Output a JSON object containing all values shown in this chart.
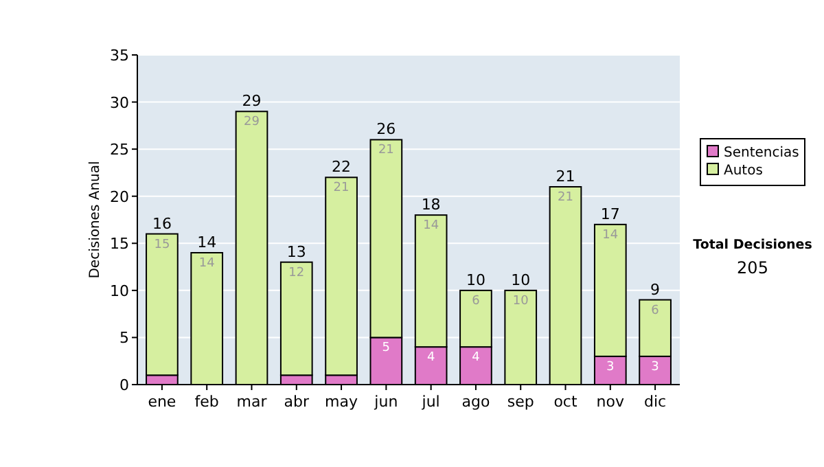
{
  "chart_data": {
    "type": "bar",
    "stacked": true,
    "ylabel": "Decisiones Anual",
    "categories": [
      "ene",
      "feb",
      "mar",
      "abr",
      "may",
      "jun",
      "jul",
      "ago",
      "sep",
      "oct",
      "nov",
      "dic"
    ],
    "series": [
      {
        "name": "Sentencias",
        "color": "#e07ac8",
        "values": [
          1,
          0,
          0,
          1,
          1,
          5,
          4,
          4,
          0,
          0,
          3,
          3
        ],
        "value_labels": [
          null,
          null,
          null,
          null,
          null,
          "5",
          "4",
          "4",
          null,
          null,
          "3",
          "3"
        ]
      },
      {
        "name": "Autos",
        "color": "#d6efa0",
        "values": [
          15,
          14,
          29,
          12,
          21,
          21,
          14,
          6,
          10,
          21,
          14,
          6
        ],
        "value_labels": [
          "15",
          "14",
          "29",
          "12",
          "21",
          "21",
          "14",
          "6",
          "10",
          "21",
          "14",
          "6"
        ]
      }
    ],
    "totals": [
      "16",
      "14",
      "29",
      "13",
      "22",
      "26",
      "18",
      "10",
      "10",
      "21",
      "17",
      "9"
    ],
    "ylim": [
      0,
      35
    ],
    "yticks": [
      0,
      5,
      10,
      15,
      20,
      25,
      30,
      35
    ],
    "grid": "y",
    "legend": "right",
    "annotations": [
      "Total Decisiones",
      "205"
    ]
  }
}
